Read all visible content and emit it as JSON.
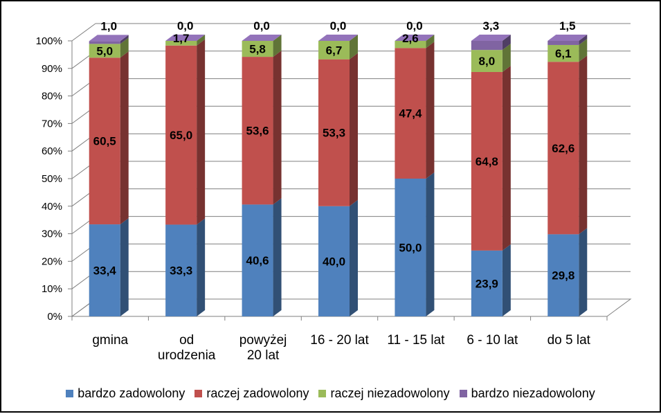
{
  "chart_data": {
    "type": "bar",
    "stacked": true,
    "percent_stacked": true,
    "three_d": true,
    "categories": [
      [
        "gmina"
      ],
      [
        "od",
        "urodzenia"
      ],
      [
        "powyżej",
        "20 lat"
      ],
      [
        "16 - 20 lat"
      ],
      [
        "11 - 15 lat"
      ],
      [
        "6 - 10 lat"
      ],
      [
        "do 5 lat"
      ]
    ],
    "series": [
      {
        "name": "bardzo zadowolony",
        "color": "#4F81BD",
        "values": [
          33.4,
          33.3,
          40.6,
          40.0,
          50.0,
          23.9,
          29.8
        ],
        "labels": [
          "33,4",
          "33,3",
          "40,6",
          "40,0",
          "50,0",
          "23,9",
          "29,8"
        ]
      },
      {
        "name": "raczej zadowolony",
        "color": "#C0504D",
        "values": [
          60.5,
          65.0,
          53.6,
          53.3,
          47.4,
          64.8,
          62.6
        ],
        "labels": [
          "60,5",
          "65,0",
          "53,6",
          "53,3",
          "47,4",
          "64,8",
          "62,6"
        ]
      },
      {
        "name": "raczej niezadowolony",
        "color": "#9BBB59",
        "values": [
          5.0,
          1.7,
          5.8,
          6.7,
          2.6,
          8.0,
          6.1
        ],
        "labels": [
          "5,0",
          "1,7",
          "5,8",
          "6,7",
          "2,6",
          "8,0",
          "6,1"
        ]
      },
      {
        "name": "bardzo niezadowolony",
        "color": "#8064A2",
        "values": [
          1.0,
          0.0,
          0.0,
          0.0,
          0.0,
          3.3,
          1.5
        ],
        "labels": [
          "1,0",
          "0,0",
          "0,0",
          "0,0",
          "0,0",
          "3,3",
          "1,5"
        ]
      }
    ],
    "y_ticks": [
      "0%",
      "10%",
      "20%",
      "30%",
      "40%",
      "50%",
      "60%",
      "70%",
      "80%",
      "90%",
      "100%"
    ],
    "ylim": [
      0,
      100
    ],
    "grid": true,
    "legend_position": "bottom",
    "title": "",
    "xlabel": "",
    "ylabel": ""
  }
}
